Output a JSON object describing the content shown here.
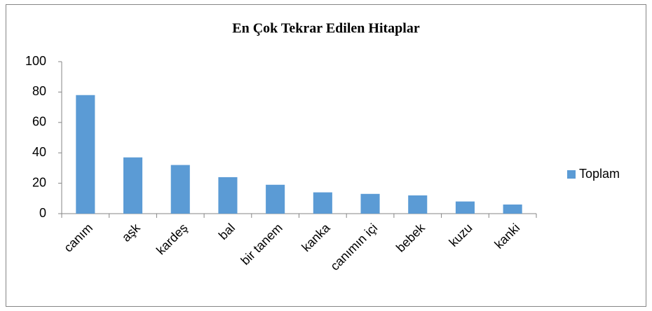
{
  "chart_data": {
    "type": "bar",
    "title": "En Çok Tekrar Edilen Hitaplar",
    "categories": [
      "canım",
      "aşk",
      "kardeş",
      "bal",
      "bir tanem",
      "kanka",
      "canımın içi",
      "bebek",
      "kuzu",
      "kanki"
    ],
    "series": [
      {
        "name": "Toplam",
        "color": "#5b9bd5",
        "values": [
          78,
          37,
          32,
          24,
          19,
          14,
          13,
          12,
          8,
          6
        ]
      }
    ],
    "ylim": [
      0,
      100
    ],
    "yticks": [
      0,
      20,
      40,
      60,
      80,
      100
    ],
    "grid": false,
    "legend": "right"
  }
}
